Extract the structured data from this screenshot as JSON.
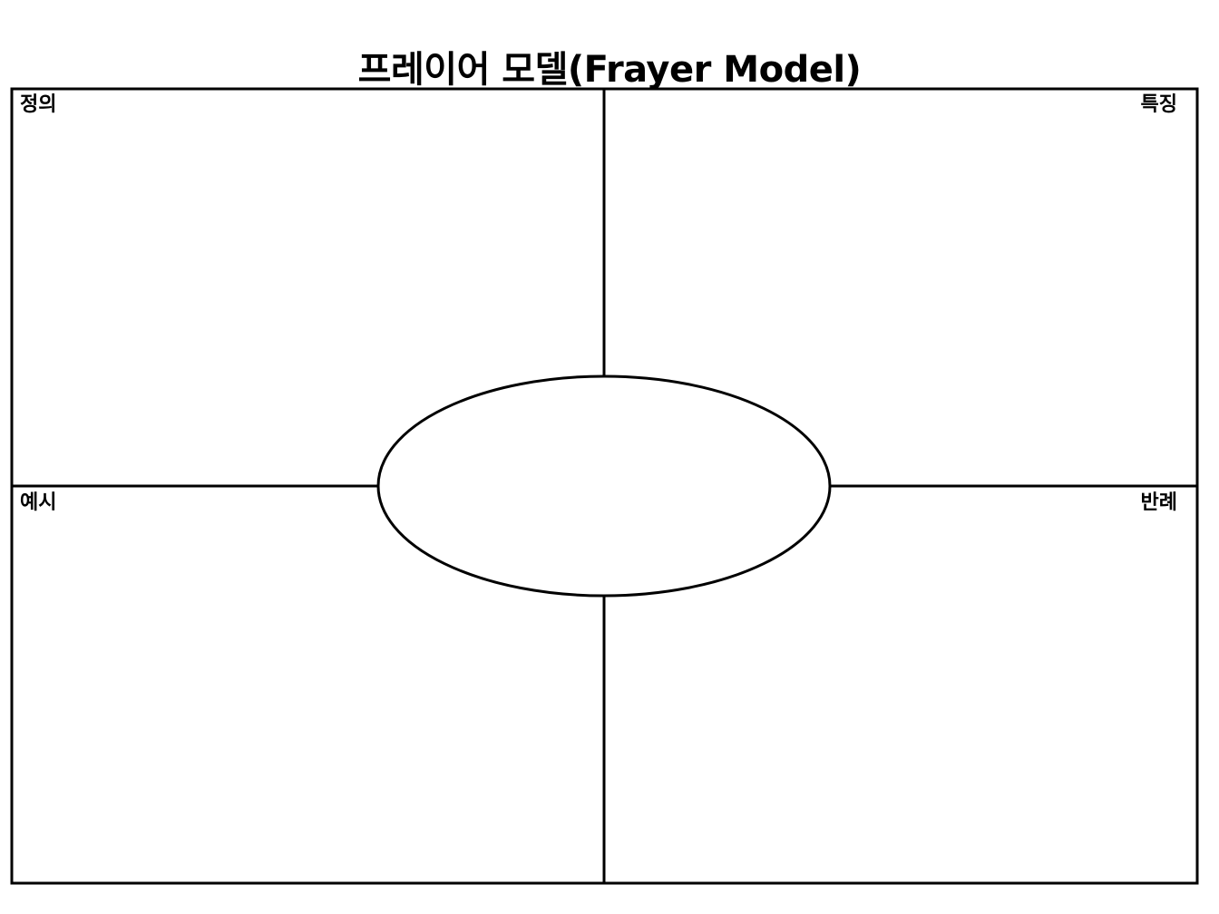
{
  "title": "프레이어 모델(Frayer Model)",
  "quadrants": {
    "top_left": "정의",
    "top_right": "특징",
    "bottom_left": "예시",
    "bottom_right": "반례"
  },
  "center_term": ""
}
